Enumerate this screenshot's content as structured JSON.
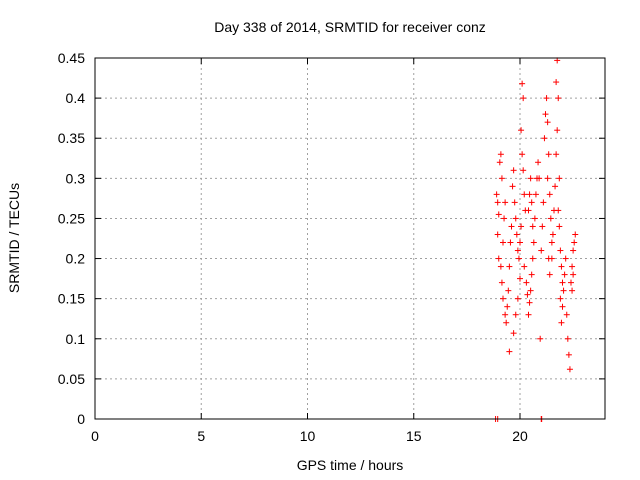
{
  "chart_data": {
    "type": "scatter",
    "title": "Day 338 of 2014, SRMTID for receiver conz",
    "xlabel": "GPS time / hours",
    "ylabel": "SRMTID / TECUs",
    "xlim": [
      0,
      24
    ],
    "ylim": [
      0,
      0.45
    ],
    "xticks": [
      "0",
      "5",
      "10",
      "15",
      "20"
    ],
    "xtick_values": [
      0,
      5,
      10,
      15,
      20
    ],
    "yticks": [
      "0",
      "0.05",
      "0.1",
      "0.15",
      "0.2",
      "0.25",
      "0.3",
      "0.35",
      "0.4",
      "0.45"
    ],
    "ytick_values": [
      0,
      0.05,
      0.1,
      0.15,
      0.2,
      0.25,
      0.3,
      0.35,
      0.4,
      0.45
    ],
    "grid": true,
    "marker": "+",
    "color": "#ff0000",
    "series": [
      {
        "name": "SRMTID",
        "points": [
          [
            18.85,
            0.0
          ],
          [
            18.95,
            0.0
          ],
          [
            21.0,
            0.0
          ],
          [
            21.02,
            0.0
          ],
          [
            18.9,
            0.28
          ],
          [
            18.95,
            0.27
          ],
          [
            19.0,
            0.255
          ],
          [
            19.05,
            0.32
          ],
          [
            19.1,
            0.33
          ],
          [
            19.15,
            0.3
          ],
          [
            18.95,
            0.23
          ],
          [
            19.0,
            0.2
          ],
          [
            19.1,
            0.19
          ],
          [
            19.15,
            0.17
          ],
          [
            19.2,
            0.22
          ],
          [
            19.25,
            0.25
          ],
          [
            19.3,
            0.27
          ],
          [
            19.2,
            0.15
          ],
          [
            19.3,
            0.13
          ],
          [
            19.35,
            0.12
          ],
          [
            19.4,
            0.14
          ],
          [
            19.45,
            0.16
          ],
          [
            19.5,
            0.19
          ],
          [
            19.55,
            0.22
          ],
          [
            19.6,
            0.24
          ],
          [
            19.5,
            0.084
          ],
          [
            19.65,
            0.29
          ],
          [
            19.7,
            0.31
          ],
          [
            19.75,
            0.27
          ],
          [
            19.8,
            0.25
          ],
          [
            19.85,
            0.23
          ],
          [
            19.9,
            0.21
          ],
          [
            19.95,
            0.2
          ],
          [
            19.7,
            0.107
          ],
          [
            19.8,
            0.13
          ],
          [
            19.9,
            0.15
          ],
          [
            20.0,
            0.175
          ],
          [
            20.05,
            0.36
          ],
          [
            20.1,
            0.418
          ],
          [
            20.15,
            0.4
          ],
          [
            20.1,
            0.33
          ],
          [
            20.15,
            0.31
          ],
          [
            20.2,
            0.28
          ],
          [
            20.25,
            0.26
          ],
          [
            20.05,
            0.24
          ],
          [
            20.0,
            0.22
          ],
          [
            20.2,
            0.19
          ],
          [
            20.3,
            0.17
          ],
          [
            20.35,
            0.155
          ],
          [
            20.4,
            0.13
          ],
          [
            20.45,
            0.145
          ],
          [
            20.5,
            0.16
          ],
          [
            20.55,
            0.18
          ],
          [
            20.6,
            0.2
          ],
          [
            20.4,
            0.26
          ],
          [
            20.45,
            0.28
          ],
          [
            20.5,
            0.3
          ],
          [
            20.55,
            0.27
          ],
          [
            20.6,
            0.24
          ],
          [
            20.65,
            0.22
          ],
          [
            20.7,
            0.25
          ],
          [
            20.75,
            0.28
          ],
          [
            20.8,
            0.3
          ],
          [
            20.85,
            0.32
          ],
          [
            20.9,
            0.3
          ],
          [
            20.95,
            0.1
          ],
          [
            21.0,
            0.21
          ],
          [
            21.05,
            0.24
          ],
          [
            21.1,
            0.27
          ],
          [
            21.15,
            0.35
          ],
          [
            21.2,
            0.38
          ],
          [
            21.25,
            0.4
          ],
          [
            21.3,
            0.37
          ],
          [
            21.35,
            0.33
          ],
          [
            21.3,
            0.3
          ],
          [
            21.4,
            0.28
          ],
          [
            21.45,
            0.25
          ],
          [
            21.5,
            0.22
          ],
          [
            21.35,
            0.2
          ],
          [
            21.4,
            0.18
          ],
          [
            21.5,
            0.2
          ],
          [
            21.55,
            0.23
          ],
          [
            21.6,
            0.26
          ],
          [
            21.65,
            0.29
          ],
          [
            21.7,
            0.33
          ],
          [
            21.75,
            0.36
          ],
          [
            21.7,
            0.42
          ],
          [
            21.75,
            0.447
          ],
          [
            21.8,
            0.4
          ],
          [
            21.85,
            0.3
          ],
          [
            21.8,
            0.26
          ],
          [
            21.85,
            0.24
          ],
          [
            21.9,
            0.21
          ],
          [
            21.95,
            0.19
          ],
          [
            22.0,
            0.17
          ],
          [
            21.9,
            0.15
          ],
          [
            21.95,
            0.12
          ],
          [
            22.0,
            0.14
          ],
          [
            22.05,
            0.16
          ],
          [
            22.1,
            0.18
          ],
          [
            22.15,
            0.2
          ],
          [
            22.2,
            0.13
          ],
          [
            22.25,
            0.1
          ],
          [
            22.3,
            0.08
          ],
          [
            22.35,
            0.062
          ],
          [
            22.4,
            0.17
          ],
          [
            22.45,
            0.19
          ],
          [
            22.5,
            0.21
          ],
          [
            22.55,
            0.22
          ],
          [
            22.6,
            0.23
          ],
          [
            22.5,
            0.18
          ],
          [
            22.45,
            0.16
          ]
        ]
      }
    ]
  }
}
